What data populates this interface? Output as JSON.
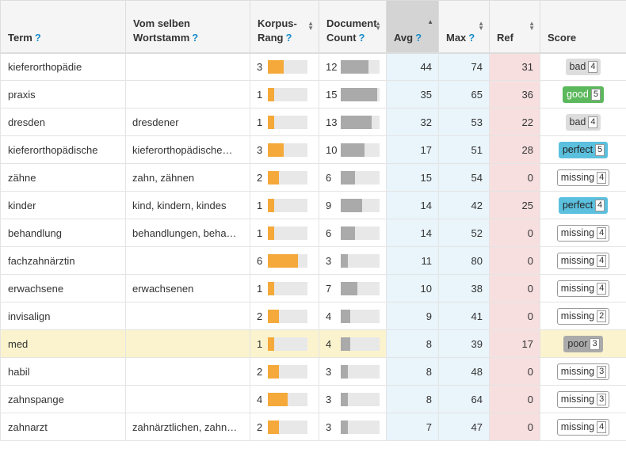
{
  "columns": {
    "term": "Term",
    "stem": "Vom selben Wortstamm",
    "rank": "Korpus-Rang",
    "doc": "Document Count",
    "avg": "Avg",
    "max": "Max",
    "ref": "Ref",
    "score": "Score"
  },
  "help_glyph": "?",
  "sort_up": "▲",
  "sort_down": "▼",
  "rows": [
    {
      "term": "kieferorthopädie",
      "stem": "",
      "rank": 3,
      "rank_level": 0.4,
      "doc": 12,
      "doc_level": 0.72,
      "avg": 44,
      "max": 74,
      "ref": 31,
      "score": "bad",
      "count": 4
    },
    {
      "term": "praxis",
      "stem": "",
      "rank": 1,
      "rank_level": 0.15,
      "doc": 15,
      "doc_level": 0.94,
      "avg": 35,
      "max": 65,
      "ref": 36,
      "score": "good",
      "count": 5
    },
    {
      "term": "dresden",
      "stem": "dresdener",
      "rank": 1,
      "rank_level": 0.15,
      "doc": 13,
      "doc_level": 0.8,
      "avg": 32,
      "max": 53,
      "ref": 22,
      "score": "bad",
      "count": 4
    },
    {
      "term": "kieferorthopädische",
      "stem": "kieferorthopädische…",
      "rank": 3,
      "rank_level": 0.4,
      "doc": 10,
      "doc_level": 0.62,
      "avg": 17,
      "max": 51,
      "ref": 28,
      "score": "perfect",
      "count": 5
    },
    {
      "term": "zähne",
      "stem": "zahn, zähnen",
      "rank": 2,
      "rank_level": 0.27,
      "doc": 6,
      "doc_level": 0.38,
      "avg": 15,
      "max": 54,
      "ref": 0,
      "score": "missing",
      "count": 4
    },
    {
      "term": "kinder",
      "stem": "kind, kindern, kindes",
      "rank": 1,
      "rank_level": 0.15,
      "doc": 9,
      "doc_level": 0.56,
      "avg": 14,
      "max": 42,
      "ref": 25,
      "score": "perfect",
      "count": 4
    },
    {
      "term": "behandlung",
      "stem": "behandlungen, beha…",
      "rank": 1,
      "rank_level": 0.15,
      "doc": 6,
      "doc_level": 0.38,
      "avg": 14,
      "max": 52,
      "ref": 0,
      "score": "missing",
      "count": 4
    },
    {
      "term": "fachzahnärztin",
      "stem": "",
      "rank": 6,
      "rank_level": 0.75,
      "doc": 3,
      "doc_level": 0.18,
      "avg": 11,
      "max": 80,
      "ref": 0,
      "score": "missing",
      "count": 4
    },
    {
      "term": "erwachsene",
      "stem": "erwachsenen",
      "rank": 1,
      "rank_level": 0.15,
      "doc": 7,
      "doc_level": 0.44,
      "avg": 10,
      "max": 38,
      "ref": 0,
      "score": "missing",
      "count": 4
    },
    {
      "term": "invisalign",
      "stem": "",
      "rank": 2,
      "rank_level": 0.27,
      "doc": 4,
      "doc_level": 0.25,
      "avg": 9,
      "max": 41,
      "ref": 0,
      "score": "missing",
      "count": 2
    },
    {
      "term": "med",
      "stem": "",
      "rank": 1,
      "rank_level": 0.15,
      "doc": 4,
      "doc_level": 0.25,
      "avg": 8,
      "max": 39,
      "ref": 17,
      "score": "poor",
      "count": 3,
      "highlight": true
    },
    {
      "term": "habil",
      "stem": "",
      "rank": 2,
      "rank_level": 0.27,
      "doc": 3,
      "doc_level": 0.18,
      "avg": 8,
      "max": 48,
      "ref": 0,
      "score": "missing",
      "count": 3
    },
    {
      "term": "zahnspange",
      "stem": "",
      "rank": 4,
      "rank_level": 0.5,
      "doc": 3,
      "doc_level": 0.18,
      "avg": 8,
      "max": 64,
      "ref": 0,
      "score": "missing",
      "count": 3
    },
    {
      "term": "zahnarzt",
      "stem": "zahnärztlichen, zahn…",
      "rank": 2,
      "rank_level": 0.27,
      "doc": 3,
      "doc_level": 0.18,
      "avg": 7,
      "max": 47,
      "ref": 0,
      "score": "missing",
      "count": 4
    }
  ]
}
